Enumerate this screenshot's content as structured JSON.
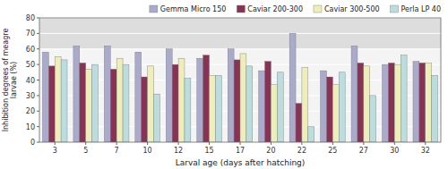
{
  "chart_data": {
    "type": "bar",
    "categories": [
      3,
      5,
      7,
      10,
      12,
      15,
      17,
      20,
      22,
      25,
      27,
      30,
      32
    ],
    "series": [
      {
        "name": "Gemma Micro 150",
        "color": "#AAAACC",
        "values": [
          58,
          62,
          62,
          58,
          60,
          54,
          60,
          46,
          70,
          46,
          62,
          50,
          52
        ]
      },
      {
        "name": "Caviar 200-300",
        "color": "#883355",
        "values": [
          49,
          51,
          47,
          42,
          50,
          56,
          53,
          52,
          25,
          42,
          51,
          51,
          51
        ]
      },
      {
        "name": "Caviar 300-500",
        "color": "#EEEEBB",
        "values": [
          55,
          47,
          54,
          49,
          54,
          43,
          57,
          37,
          48,
          37,
          49,
          50,
          51
        ]
      },
      {
        "name": "Perla LP 40",
        "color": "#BBDDDD",
        "values": [
          53,
          50,
          50,
          31,
          41,
          43,
          49,
          45,
          10,
          45,
          30,
          56,
          43
        ]
      }
    ],
    "xlabel": "Larval age (days after hatching)",
    "ylabel": "Inhibition degrees of meagre\nlarvae (%)",
    "ylim": [
      0,
      80
    ],
    "yticks": [
      0,
      10,
      20,
      30,
      40,
      50,
      60,
      70,
      80
    ],
    "shaded_above": 60,
    "grid": true,
    "legend": "upper right"
  }
}
